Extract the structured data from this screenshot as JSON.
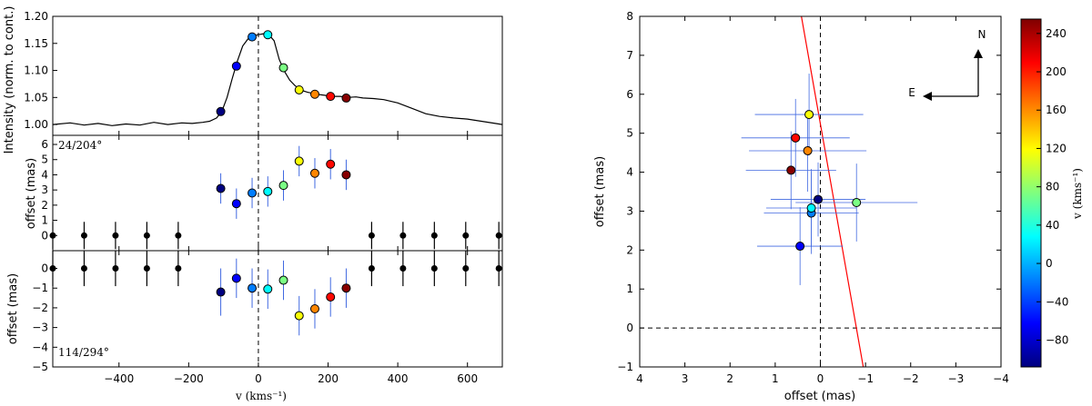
{
  "chart_data": [
    {
      "type": "line",
      "panel": "spectrum",
      "ylabel": "Intensity (norm. to cont.)",
      "xlim": [
        -590,
        700
      ],
      "ylim": [
        0.98,
        1.2
      ],
      "yticks": [
        1.0,
        1.05,
        1.1,
        1.15,
        1.2
      ],
      "ytick_labels": [
        "1.00",
        "1.05",
        "1.10",
        "1.15",
        "1.20"
      ],
      "profile": {
        "x": [
          -590,
          -540,
          -500,
          -460,
          -420,
          -380,
          -340,
          -300,
          -260,
          -220,
          -190,
          -160,
          -140,
          -120,
          -105,
          -90,
          -75,
          -60,
          -45,
          -30,
          -15,
          0,
          15,
          30,
          45,
          60,
          75,
          90,
          105,
          120,
          140,
          165,
          190,
          210,
          235,
          255,
          280,
          300,
          330,
          360,
          400,
          440,
          480,
          520,
          560,
          600,
          640,
          680,
          700
        ],
        "y": [
          1.0,
          1.003,
          0.999,
          1.002,
          0.998,
          1.001,
          0.999,
          1.004,
          1.0,
          1.003,
          1.002,
          1.004,
          1.006,
          1.012,
          1.024,
          1.05,
          1.085,
          1.118,
          1.145,
          1.158,
          1.164,
          1.166,
          1.168,
          1.166,
          1.155,
          1.12,
          1.098,
          1.082,
          1.072,
          1.064,
          1.06,
          1.056,
          1.054,
          1.052,
          1.052,
          1.05,
          1.051,
          1.049,
          1.048,
          1.046,
          1.04,
          1.03,
          1.02,
          1.015,
          1.012,
          1.01,
          1.006,
          1.002,
          1.0
        ]
      },
      "points": {
        "v": [
          -108,
          -63,
          -18,
          27,
          72,
          117,
          162,
          207,
          252
        ],
        "intensity": [
          1.024,
          1.108,
          1.162,
          1.166,
          1.105,
          1.064,
          1.056,
          1.052,
          1.049
        ]
      }
    },
    {
      "type": "scatter",
      "panel": "offset-24/204",
      "label": "24/204°",
      "ylabel": "offset (mas)",
      "ylim": [
        -1,
        6.6
      ],
      "yticks": [
        0,
        1,
        2,
        3,
        4,
        5,
        6
      ],
      "points": {
        "v": [
          -108,
          -63,
          -18,
          27,
          72,
          117,
          162,
          207,
          252
        ],
        "y": [
          3.1,
          2.1,
          2.8,
          2.9,
          3.3,
          4.9,
          4.1,
          4.7,
          4.0
        ],
        "err": [
          1.0,
          1.0,
          1.0,
          1.0,
          1.0,
          1.0,
          1.0,
          1.0,
          1.0
        ]
      },
      "continuum": {
        "v": [
          -590,
          -500,
          -410,
          -320,
          -230,
          325,
          415,
          505,
          595,
          690
        ],
        "y": [
          0,
          0,
          0,
          0,
          0,
          0,
          0,
          0,
          0,
          0
        ],
        "err": [
          0.9,
          0.9,
          0.9,
          0.9,
          0.9,
          0.9,
          0.9,
          0.9,
          0.9,
          0.9
        ]
      }
    },
    {
      "type": "scatter",
      "panel": "offset-114/294",
      "label": "114/294°",
      "ylabel": "offset (mas)",
      "xlabel": "v (kms⁻¹)",
      "xlim": [
        -590,
        700
      ],
      "xticks": [
        -400,
        -200,
        0,
        200,
        400,
        600
      ],
      "xtick_labels": [
        "−400",
        "−200",
        "0",
        "200",
        "400",
        "600"
      ],
      "ylim": [
        -5,
        0.9
      ],
      "yticks": [
        -5,
        -4,
        -3,
        -2,
        -1,
        0
      ],
      "ytick_labels": [
        "−5",
        "−4",
        "−3",
        "−2",
        "−1",
        "0"
      ],
      "points": {
        "v": [
          -108,
          -63,
          -18,
          27,
          72,
          117,
          162,
          207,
          252
        ],
        "y": [
          -1.2,
          -0.5,
          -1.0,
          -1.05,
          -0.6,
          -2.4,
          -2.05,
          -1.45,
          -1.0
        ],
        "err": [
          1.2,
          1.0,
          1.0,
          1.0,
          1.0,
          1.0,
          1.0,
          1.0,
          1.0
        ]
      },
      "continuum": {
        "v": [
          -590,
          -500,
          -410,
          -320,
          -230,
          325,
          415,
          505,
          595,
          690
        ],
        "y": [
          0,
          0,
          0,
          0,
          0,
          0,
          0,
          0,
          0,
          0
        ],
        "err": [
          0.9,
          0.9,
          0.9,
          0.9,
          0.9,
          0.9,
          0.9,
          0.9,
          0.9,
          0.9
        ]
      }
    },
    {
      "type": "scatter",
      "panel": "sky-offsets",
      "xlabel": "offset (mas)",
      "ylabel": "offset (mas)",
      "xlim": [
        4,
        -4
      ],
      "ylim": [
        -1,
        8
      ],
      "xticks": [
        4,
        3,
        2,
        1,
        0,
        -1,
        -2,
        -3,
        -4
      ],
      "xtick_labels": [
        "4",
        "3",
        "2",
        "1",
        "0",
        "−1",
        "−2",
        "−3",
        "−4"
      ],
      "yticks": [
        -1,
        0,
        1,
        2,
        3,
        4,
        5,
        6,
        7,
        8
      ],
      "ytick_labels": [
        "−1",
        "0",
        "1",
        "2",
        "3",
        "4",
        "5",
        "6",
        "7",
        "8"
      ],
      "points": {
        "x": [
          0.05,
          0.45,
          0.2,
          0.2,
          -0.8,
          0.25,
          0.28,
          0.55,
          0.65
        ],
        "y": [
          3.3,
          2.1,
          2.95,
          3.08,
          3.22,
          5.48,
          4.55,
          4.88,
          4.05
        ],
        "v": [
          -108,
          -63,
          -18,
          27,
          72,
          117,
          162,
          207,
          252
        ],
        "xerr": [
          1.05,
          0.95,
          1.05,
          1.0,
          1.35,
          1.2,
          1.3,
          1.2,
          1.0
        ],
        "yerr": [
          0.95,
          1.0,
          1.05,
          1.0,
          1.0,
          1.05,
          1.05,
          1.0,
          1.0
        ]
      },
      "fit_line": {
        "x": [
          0.42,
          -0.95
        ],
        "y": [
          8,
          -1
        ]
      },
      "compass": {
        "north": "N",
        "east": "E"
      },
      "colorbar": {
        "label": "v (kms⁻¹)",
        "min": -108,
        "max": 255,
        "ticks": [
          -80,
          -40,
          0,
          40,
          80,
          120,
          160,
          200,
          240
        ],
        "tick_labels": [
          "−80",
          "−40",
          "0",
          "40",
          "80",
          "120",
          "160",
          "200",
          "240"
        ]
      }
    }
  ]
}
